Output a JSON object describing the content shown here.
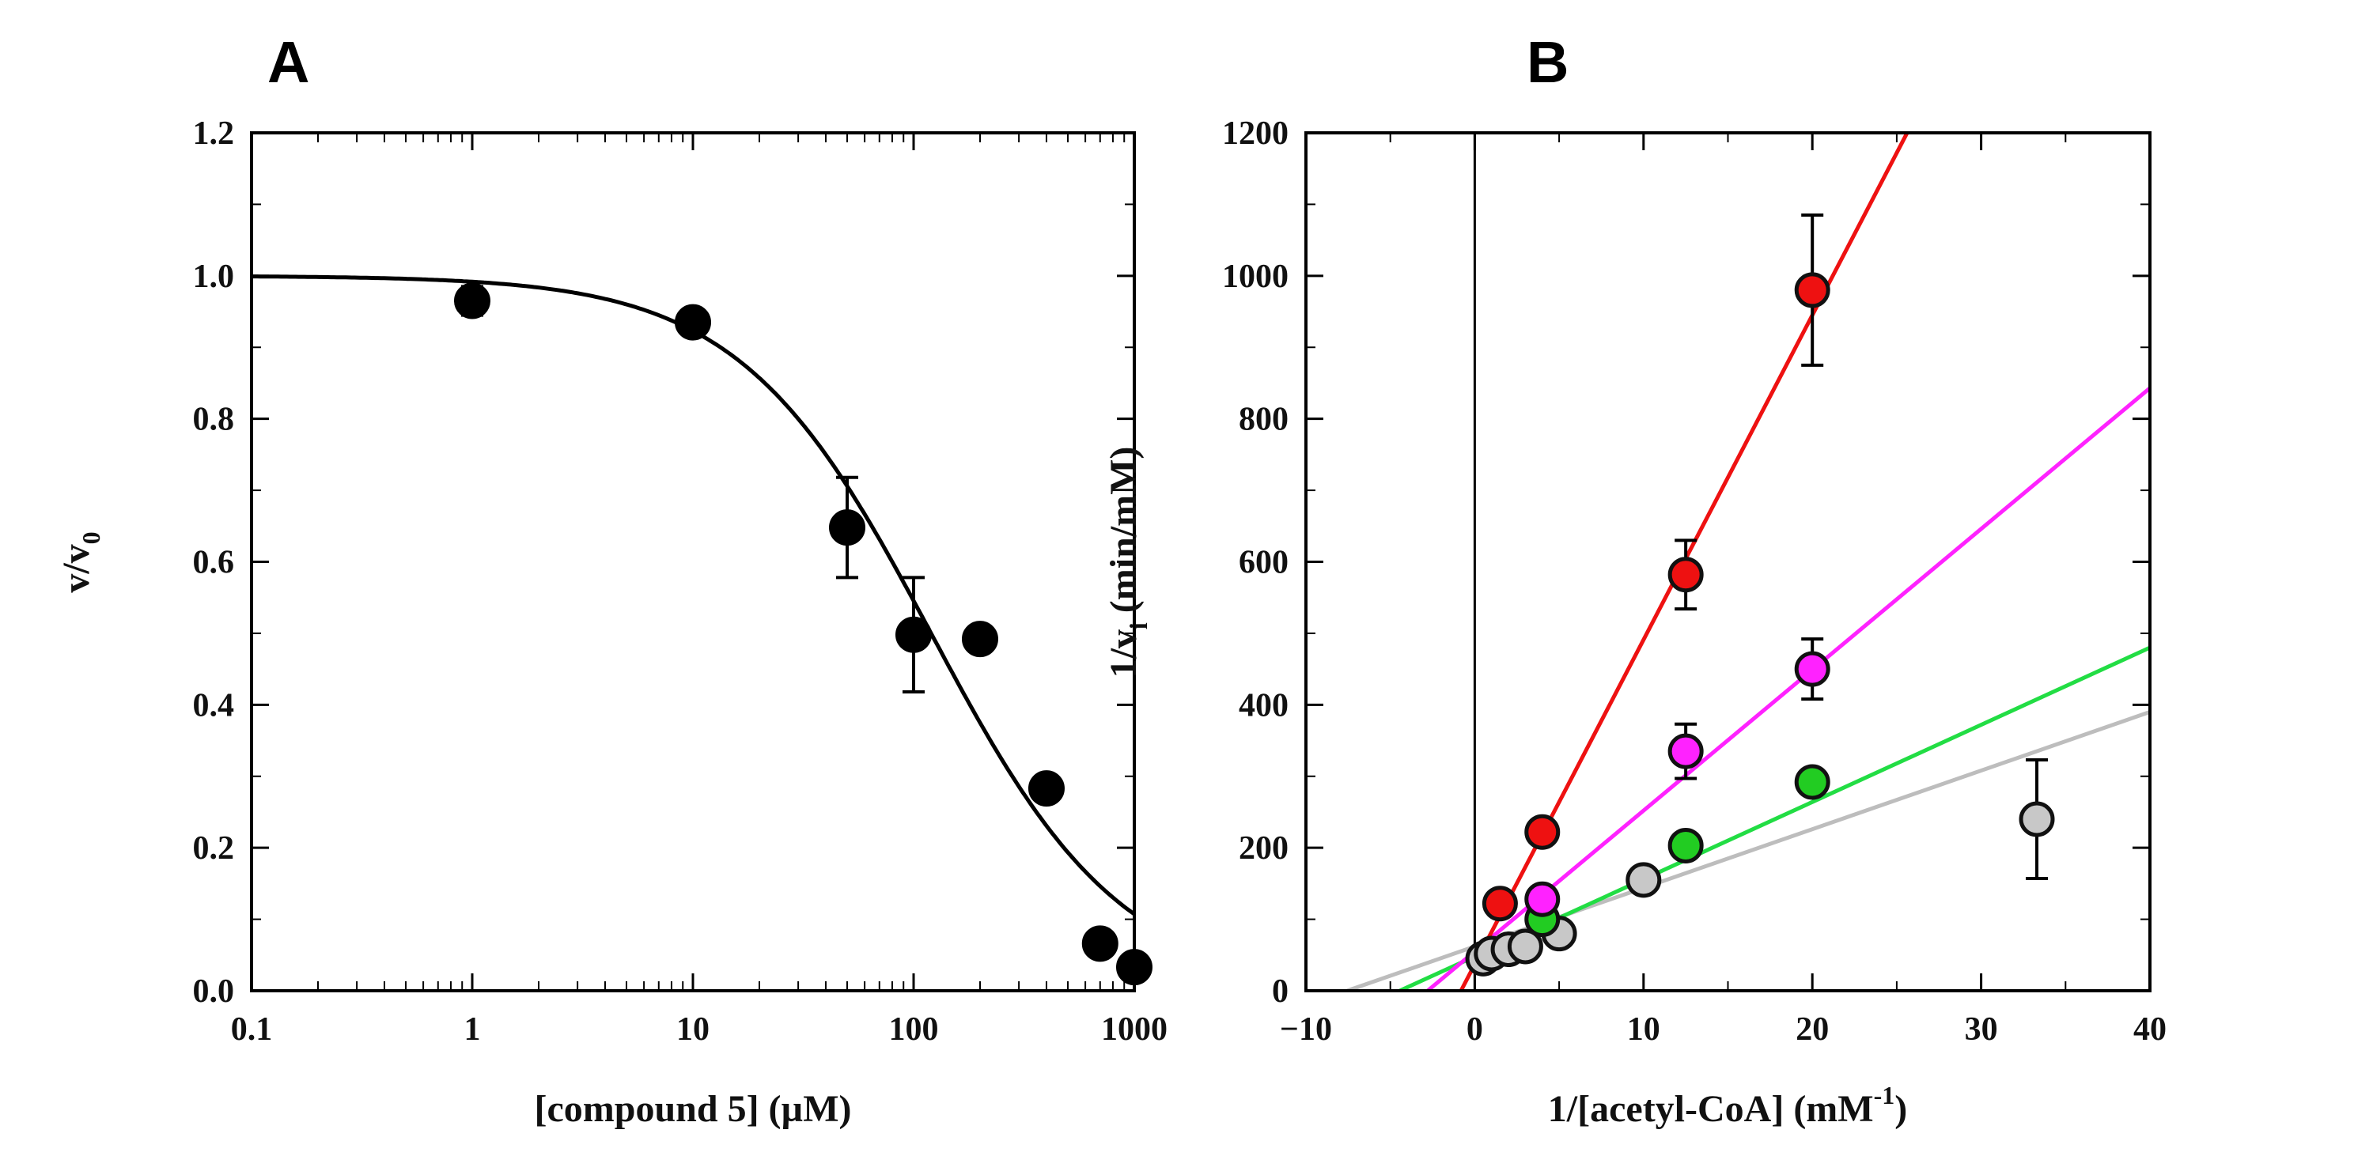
{
  "chart_data": [
    {
      "panel": "A",
      "type": "scatter",
      "x_scale": "log",
      "xlim": [
        0.1,
        1000
      ],
      "ylim": [
        0.0,
        1.2
      ],
      "xticks": [
        0.1,
        1,
        10,
        100,
        1000
      ],
      "xtick_labels": [
        "0.1",
        "1",
        "10",
        "100",
        "1000"
      ],
      "yticks": [
        0.0,
        0.2,
        0.4,
        0.6,
        0.8,
        1.0,
        1.2
      ],
      "ytick_labels": [
        "0.0",
        "0.2",
        "0.4",
        "0.6",
        "0.8",
        "1.0",
        "1.2"
      ],
      "xlabel": "[compound 5] (µM)",
      "ylabel_main": "v/v",
      "ylabel_sub": "0",
      "points": [
        {
          "x": 1,
          "y": 0.965,
          "err": 0.02
        },
        {
          "x": 10,
          "y": 0.935,
          "err": 0.01
        },
        {
          "x": 50,
          "y": 0.648,
          "err": 0.07
        },
        {
          "x": 100,
          "y": 0.498,
          "err": 0.08
        },
        {
          "x": 200,
          "y": 0.492,
          "err": 0
        },
        {
          "x": 400,
          "y": 0.283,
          "err": 0
        },
        {
          "x": 700,
          "y": 0.066,
          "err": 0
        },
        {
          "x": 1000,
          "y": 0.033,
          "err": 0
        }
      ],
      "fit": {
        "model": "1/(1+x/IC50)",
        "ic50": 120,
        "color": "#000000"
      }
    },
    {
      "panel": "B",
      "type": "scatter",
      "xlim": [
        -10,
        40
      ],
      "ylim": [
        0,
        1200
      ],
      "xticks": [
        -10,
        0,
        10,
        20,
        30,
        40
      ],
      "xtick_labels": [
        "−10",
        "0",
        "10",
        "20",
        "30",
        "40"
      ],
      "yticks": [
        0,
        200,
        400,
        600,
        800,
        1000,
        1200
      ],
      "ytick_labels": [
        "0",
        "200",
        "400",
        "600",
        "800",
        "1000",
        "1200"
      ],
      "xlabel_main": "1/[acetyl-CoA] (mM",
      "xlabel_sup": "-1",
      "xlabel_end": ")",
      "ylabel_pre": "1/v",
      "ylabel_sub": "i",
      "ylabel_post": " (min/mM)",
      "series": [
        {
          "name": "gray",
          "color": "#c8c8c8",
          "line_color": "#bdbdbd",
          "fit": {
            "slope": 8.2,
            "intercept": 62
          },
          "points": [
            {
              "x": 0.5,
              "y": 45,
              "err": 0
            },
            {
              "x": 1.0,
              "y": 52,
              "err": 0
            },
            {
              "x": 2.0,
              "y": 58,
              "err": 0
            },
            {
              "x": 3.0,
              "y": 62,
              "err": 0
            },
            {
              "x": 5.0,
              "y": 80,
              "err": 0
            },
            {
              "x": 10.0,
              "y": 155,
              "err": 0
            },
            {
              "x": 33.3,
              "y": 240,
              "err": 83
            }
          ]
        },
        {
          "name": "green",
          "color": "#22cc22",
          "line_color": "#22dd44",
          "fit": {
            "slope": 10.8,
            "intercept": 48
          },
          "points": [
            {
              "x": 4,
              "y": 100,
              "err": 0
            },
            {
              "x": 12.5,
              "y": 203,
              "err": 0
            },
            {
              "x": 20,
              "y": 292,
              "err": 0
            }
          ]
        },
        {
          "name": "magenta",
          "color": "#ff22ff",
          "line_color": "#ff22ff",
          "fit": {
            "slope": 19.7,
            "intercept": 55
          },
          "points": [
            {
              "x": 4,
              "y": 128,
              "err": 0
            },
            {
              "x": 12.5,
              "y": 335,
              "err": 38
            },
            {
              "x": 20,
              "y": 450,
              "err": 42
            }
          ]
        },
        {
          "name": "red",
          "color": "#ee1111",
          "line_color": "#ee1111",
          "fit": {
            "slope": 45.4,
            "intercept": 37
          },
          "points": [
            {
              "x": 1.5,
              "y": 122,
              "err": 0
            },
            {
              "x": 4,
              "y": 222,
              "err": 0
            },
            {
              "x": 12.5,
              "y": 582,
              "err": 48
            },
            {
              "x": 20,
              "y": 980,
              "err": 105
            }
          ]
        }
      ]
    }
  ]
}
